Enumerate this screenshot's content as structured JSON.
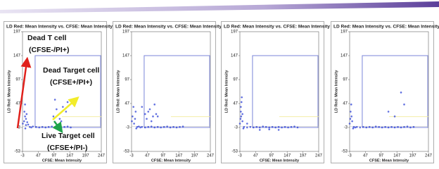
{
  "chart_data": [
    {
      "type": "scatter",
      "title": "LD Red: Mean Intensity vs. CFSE: Mean Intensity",
      "x_label": "CFSE: Mean Intensity",
      "y_label": "LD Red: Mean Intensity",
      "color": "#2b3fd6",
      "xlim": [
        -3,
        247
      ],
      "ylim": [
        -53,
        197
      ],
      "xticks": [
        -3,
        47,
        97,
        147,
        197,
        247
      ],
      "yticks": [
        -53,
        -3,
        47,
        97,
        147,
        197
      ],
      "x": [
        -2,
        2,
        5,
        8,
        10,
        12,
        15,
        3,
        6,
        20,
        25,
        30,
        40,
        50,
        60,
        70,
        80,
        90,
        100,
        110,
        120,
        130,
        140,
        150,
        95,
        105,
        115,
        125,
        135,
        140,
        100,
        120,
        5,
        8
      ],
      "values": [
        5,
        10,
        20,
        15,
        25,
        8,
        3,
        30,
        -5,
        -2,
        -3,
        -1,
        -2,
        -3,
        -2,
        -3,
        -2,
        -1,
        -3,
        -2,
        -3,
        -2,
        -1,
        -3,
        20,
        35,
        15,
        40,
        30,
        50,
        55,
        10,
        45,
        2
      ],
      "annotations": [
        "Dead T cell",
        "(CFSE-/PI+)",
        "Dead Target cell",
        "(CFSE+/PI+)",
        "Live Target cell",
        "(CFSE+/PI-)"
      ]
    },
    {
      "type": "scatter",
      "title": "LD Red: Mean Intensity vs. CFSE: Mean Intensity",
      "x_label": "CFSE: Mean Intensity",
      "y_label": "LD Red: Mean Intensity",
      "color": "#2b3fd6",
      "xlim": [
        -3,
        247
      ],
      "ylim": [
        -53,
        197
      ],
      "xticks": [
        -3,
        47,
        97,
        147,
        197,
        247
      ],
      "yticks": [
        -53,
        -3,
        47,
        97,
        147,
        197
      ],
      "x": [
        -2,
        0,
        3,
        5,
        8,
        10,
        12,
        15,
        20,
        25,
        30,
        40,
        50,
        60,
        70,
        80,
        90,
        100,
        110,
        120,
        130,
        140,
        150,
        160,
        30,
        40,
        50,
        60,
        70,
        80,
        45,
        55,
        65,
        75
      ],
      "values": [
        10,
        20,
        40,
        5,
        15,
        30,
        -5,
        -2,
        -1,
        -3,
        -2,
        -3,
        -2,
        -1,
        -3,
        -2,
        -3,
        -2,
        -1,
        -3,
        -2,
        -3,
        -2,
        -1,
        40,
        25,
        30,
        10,
        45,
        20,
        15,
        35,
        20,
        25
      ]
    },
    {
      "type": "scatter",
      "title": "LD Red: Mean Intensity vs. CFSE: Mean Intensity",
      "x_label": "CFSE: Mean Intensity",
      "y_label": "LD Red: Mean Intensity",
      "color": "#2b3fd6",
      "xlim": [
        -3,
        247
      ],
      "ylim": [
        -53,
        197
      ],
      "xticks": [
        -3,
        47,
        97,
        147,
        197,
        247
      ],
      "yticks": [
        -53,
        -3,
        47,
        97,
        147,
        197
      ],
      "x": [
        -3,
        -1,
        0,
        2,
        3,
        5,
        0,
        1,
        8,
        10,
        20,
        30,
        40,
        50,
        60,
        70,
        80,
        90,
        100,
        110,
        120,
        130,
        140,
        150,
        160,
        170,
        180,
        60,
        90,
        120,
        20,
        5
      ],
      "values": [
        5,
        15,
        30,
        50,
        60,
        10,
        40,
        20,
        -5,
        -2,
        -3,
        -2,
        -3,
        -2,
        -3,
        -1,
        -2,
        -3,
        -2,
        -3,
        -2,
        -3,
        -2,
        -3,
        -2,
        -1,
        -3,
        -8,
        -7,
        -8,
        5,
        25
      ]
    },
    {
      "type": "scatter",
      "title": "LD Red: Mean Intensity vs. CFSE: Mean Intensity",
      "x_label": "CFSE: Mean Intensity",
      "y_label": "LD Red: Mean Intensity",
      "color": "#2b3fd6",
      "xlim": [
        -3,
        247
      ],
      "ylim": [
        -53,
        197
      ],
      "xticks": [
        -3,
        47,
        97,
        147,
        197,
        247
      ],
      "yticks": [
        -53,
        -3,
        47,
        97,
        147,
        197
      ],
      "x": [
        -3,
        -1,
        0,
        2,
        3,
        5,
        8,
        10,
        15,
        20,
        30,
        40,
        50,
        60,
        70,
        80,
        90,
        100,
        110,
        120,
        130,
        140,
        150,
        160,
        170,
        180,
        190,
        200,
        160,
        170,
        120,
        140
      ],
      "values": [
        5,
        15,
        30,
        45,
        20,
        10,
        -5,
        -2,
        -3,
        -2,
        -3,
        -2,
        -3,
        -2,
        -3,
        -1,
        -2,
        -3,
        -2,
        -3,
        -2,
        -3,
        -2,
        -3,
        -2,
        -1,
        -3,
        -2,
        70,
        45,
        30,
        20
      ]
    }
  ]
}
